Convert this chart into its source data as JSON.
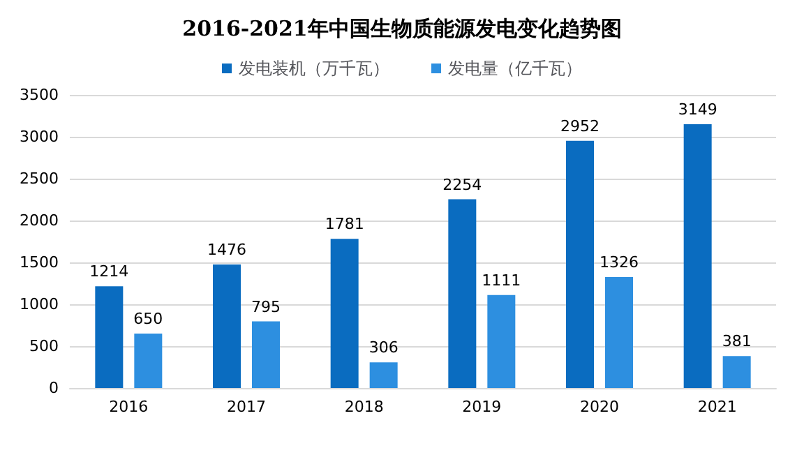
{
  "chart_data": {
    "type": "bar",
    "title": "2016-2021年中国生物质能源发电变化趋势图",
    "categories": [
      "2016",
      "2017",
      "2018",
      "2019",
      "2020",
      "2021"
    ],
    "series": [
      {
        "name": "发电装机（万千瓦）",
        "color": "#0a6cc0",
        "values": [
          1214,
          1476,
          1781,
          2254,
          2952,
          3149
        ]
      },
      {
        "name": "发电量（亿千瓦）",
        "color": "#2d8fe0",
        "values": [
          650,
          795,
          306,
          1111,
          1326,
          381
        ]
      }
    ],
    "ylim": [
      0,
      3500
    ],
    "yticks": [
      0,
      500,
      1000,
      1500,
      2000,
      2500,
      3000,
      3500
    ],
    "grid": "y",
    "legend": "top",
    "data_labels": true
  }
}
